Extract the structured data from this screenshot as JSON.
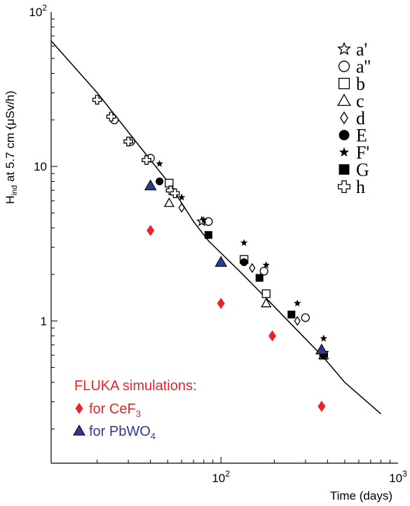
{
  "chart_data": {
    "type": "scatter",
    "xscale": "log",
    "yscale": "log",
    "xlim": [
      11,
      1000
    ],
    "ylim": [
      0.12,
      100
    ],
    "grid": false,
    "xlabel": "Time (days)",
    "ylabel_main": "H",
    "ylabel_sub": "ind",
    "ylabel_rest": " at 5.7 cm (μSv/h)",
    "x_ticks": [
      {
        "value": 100,
        "base": "10",
        "exp": "2"
      },
      {
        "value": 1000,
        "base": "10",
        "exp": "3"
      }
    ],
    "y_ticks": [
      {
        "value": 1,
        "label": "1"
      },
      {
        "value": 10,
        "label": "10"
      },
      {
        "value": 100,
        "base": "10",
        "exp": "2"
      }
    ],
    "legend_position": "top-right",
    "fit_line": [
      [
        11,
        65
      ],
      [
        20,
        30
      ],
      [
        40,
        11
      ],
      [
        50,
        8.0
      ],
      [
        60,
        5.8
      ],
      [
        70,
        4.4
      ],
      [
        85,
        3.3
      ],
      [
        100,
        2.75
      ],
      [
        130,
        2.05
      ],
      [
        170,
        1.5
      ],
      [
        250,
        0.95
      ],
      [
        380,
        0.58
      ],
      [
        500,
        0.4
      ],
      [
        800,
        0.25
      ]
    ],
    "series": [
      {
        "name": "a'",
        "marker": "star-open",
        "color": "#000000",
        "points": [
          [
            78,
            4.4
          ],
          [
            380,
            0.62
          ]
        ]
      },
      {
        "name": "a''",
        "marker": "circle-open",
        "color": "#000000",
        "points": [
          [
            25,
            20
          ],
          [
            31,
            14.5
          ],
          [
            40,
            11.3
          ],
          [
            85,
            4.4
          ],
          [
            175,
            2.1
          ],
          [
            300,
            1.05
          ]
        ]
      },
      {
        "name": "b",
        "marker": "square-open",
        "color": "#000000",
        "points": [
          [
            51,
            7.8
          ],
          [
            135,
            2.5
          ],
          [
            180,
            1.5
          ],
          [
            380,
            0.6
          ]
        ]
      },
      {
        "name": "c",
        "marker": "triangle-open",
        "color": "#000000",
        "points": [
          [
            51,
            5.8
          ],
          [
            180,
            1.3
          ],
          [
            380,
            0.6
          ]
        ]
      },
      {
        "name": "d",
        "marker": "diamond-open",
        "color": "#000000",
        "points": [
          [
            60,
            5.4
          ],
          [
            150,
            2.2
          ],
          [
            270,
            1.0
          ]
        ]
      },
      {
        "name": "E",
        "marker": "circle-filled",
        "color": "#000000",
        "points": [
          [
            45,
            8.0
          ],
          [
            135,
            2.4
          ],
          [
            380,
            0.6
          ]
        ]
      },
      {
        "name": "F'",
        "marker": "star-filled",
        "color": "#000000",
        "points": [
          [
            45,
            10.4
          ],
          [
            60,
            6.3
          ],
          [
            80,
            4.5
          ],
          [
            135,
            3.2
          ],
          [
            180,
            2.3
          ],
          [
            270,
            1.3
          ],
          [
            380,
            0.77
          ]
        ]
      },
      {
        "name": "G",
        "marker": "square-filled",
        "color": "#000000",
        "points": [
          [
            85,
            3.6
          ],
          [
            165,
            1.9
          ],
          [
            250,
            1.1
          ]
        ]
      },
      {
        "name": "h",
        "marker": "cross-open",
        "color": "#000000",
        "points": [
          [
            20,
            27
          ],
          [
            24,
            21
          ],
          [
            30,
            14.5
          ],
          [
            38,
            11
          ],
          [
            52,
            7
          ],
          [
            55,
            6.7
          ]
        ]
      }
    ],
    "sim_series": [
      {
        "marker": "diamond-filled",
        "color": "#e8242a",
        "points": [
          [
            40,
            3.85
          ],
          [
            100,
            1.3
          ],
          [
            195,
            0.8
          ],
          [
            370,
            0.28
          ]
        ]
      },
      {
        "marker": "triangle-filled",
        "color": "#2e3a8c",
        "points": [
          [
            40,
            7.5
          ],
          [
            100,
            2.4
          ],
          [
            370,
            0.65
          ]
        ]
      }
    ],
    "annotation": {
      "title": "FLUKA simulations:",
      "title_color": "#e8242a",
      "items": [
        {
          "text": "for CeF",
          "sub": "3",
          "marker": "diamond-filled",
          "color": "#e8242a"
        },
        {
          "text": "for PbWO",
          "sub": "4",
          "marker": "triangle-filled",
          "color": "#2e3a8c"
        }
      ]
    }
  }
}
